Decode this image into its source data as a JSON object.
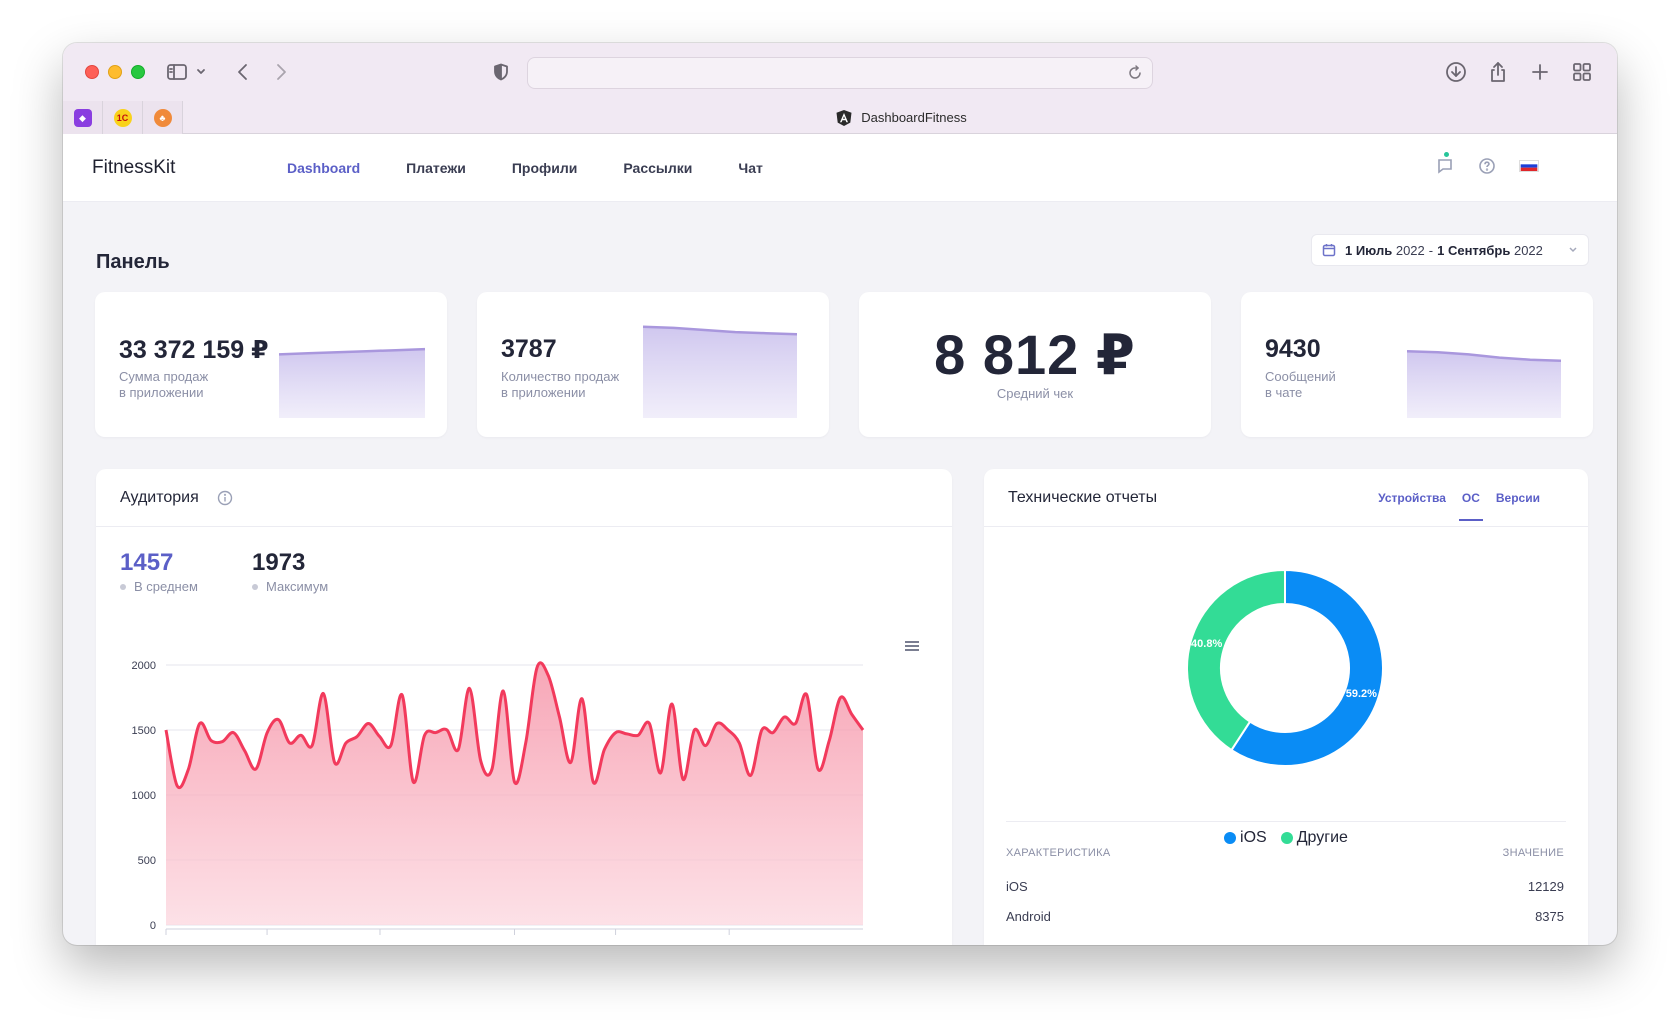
{
  "browser": {
    "tab_title": "DashboardFitness",
    "pinned_tabs": [
      {
        "name": "pinned-tab-1",
        "glyph": "◆"
      },
      {
        "name": "pinned-tab-2",
        "glyph": "1С"
      },
      {
        "name": "pinned-tab-3",
        "glyph": "♣"
      }
    ]
  },
  "nav": {
    "brand": "FitnessKit",
    "items": [
      "Dashboard",
      "Платежи",
      "Профили",
      "Рассылки",
      "Чат"
    ],
    "active_index": 0
  },
  "page": {
    "title": "Панель",
    "date_from": "1 Июль",
    "date_from_year": "2022",
    "date_to": "1 Сентябрь",
    "date_to_year": "2022"
  },
  "stats": [
    {
      "value": "33 372 159 ₽",
      "label_1": "Сумма продаж",
      "label_2": "в приложении",
      "trend": [
        0.6,
        0.61,
        0.62,
        0.63,
        0.64,
        0.65
      ]
    },
    {
      "value": "3787",
      "label_1": "Количество продаж",
      "label_2": "в приложении",
      "trend": [
        0.86,
        0.85,
        0.83,
        0.81,
        0.8,
        0.79
      ]
    },
    {
      "value": "8 812 ₽",
      "label": "Средний чек"
    },
    {
      "value": "9430",
      "label_1": "Сообщений",
      "label_2": "в чате",
      "trend": [
        0.63,
        0.62,
        0.6,
        0.57,
        0.55,
        0.54
      ]
    }
  ],
  "audience": {
    "title": "Аудитория",
    "avg_value": "1457",
    "avg_label": "В среднем",
    "max_value": "1973",
    "max_label": "Максимум"
  },
  "tech": {
    "title": "Технические отчеты",
    "tabs": [
      "Устройства",
      "ОС",
      "Версии"
    ],
    "active_tab": 1,
    "table_header_left": "ХАРАКТЕРИСТИКА",
    "table_header_right": "ЗНАЧЕНИЕ",
    "rows": [
      {
        "label": "iOS",
        "value": "12129"
      },
      {
        "label": "Android",
        "value": "8375"
      }
    ]
  },
  "colors": {
    "accent": "#5b5fc7",
    "line": "#f23a5c",
    "ios": "#0a8cf5",
    "other": "#33dc96"
  },
  "chart_data": [
    {
      "type": "area",
      "ylim": [
        0,
        2000
      ],
      "yticks": [
        0,
        500,
        1000,
        1500,
        2000
      ],
      "series": [
        {
          "values": [
            1500,
            1070,
            1200,
            1550,
            1420,
            1410,
            1480,
            1340,
            1200,
            1480,
            1580,
            1400,
            1460,
            1380,
            1780,
            1250,
            1400,
            1450,
            1550,
            1450,
            1380,
            1770,
            1100,
            1460,
            1480,
            1500,
            1350,
            1820,
            1260,
            1200,
            1800,
            1100,
            1400,
            1980,
            1920,
            1600,
            1250,
            1740,
            1100,
            1350,
            1480,
            1470,
            1460,
            1550,
            1170,
            1700,
            1120,
            1500,
            1380,
            1550,
            1500,
            1400,
            1150,
            1500,
            1480,
            1600,
            1550,
            1770,
            1200,
            1420,
            1750,
            1620,
            1500
          ]
        }
      ]
    },
    {
      "type": "pie",
      "donut": true,
      "categories": [
        "iOS",
        "Другие"
      ],
      "values": [
        59.2,
        40.8
      ],
      "data_labels": [
        "59.2%",
        "40.8%"
      ],
      "legend_position": "bottom"
    }
  ]
}
